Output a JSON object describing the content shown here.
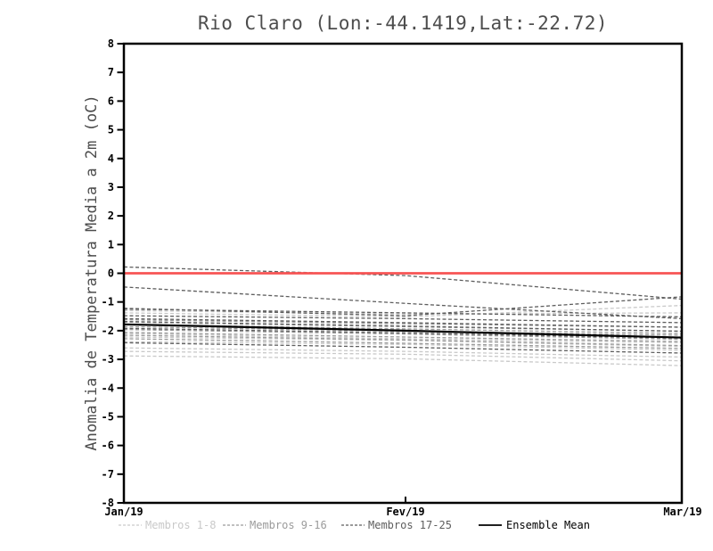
{
  "title": "Rio Claro (Lon:-44.1419,Lat:-22.72)",
  "chart_data": {
    "type": "line",
    "title": "Rio Claro (Lon:-44.1419,Lat:-22.72)",
    "xlabel": "",
    "ylabel": "Anomalia de Temperatura Media a 2m (oC)",
    "ylim": [
      -8,
      8
    ],
    "ytick_step": 1,
    "grid": false,
    "x_tick_labels": [
      "Jan/19",
      "Fev/19",
      "Mar/19"
    ],
    "y_tick_labels": [
      "8",
      "7",
      "6",
      "5",
      "4",
      "3",
      "2",
      "1",
      "0",
      "-1",
      "-2",
      "-3",
      "-4",
      "-5",
      "-6",
      "-7",
      "-8"
    ],
    "zero_line": {
      "value": 0,
      "color": "#f75454"
    },
    "legend_position": "bottom",
    "legend": [
      {
        "label": "Membros 1-8",
        "color": "#c9c9c9",
        "dashed": true
      },
      {
        "label": "Membros 9-16",
        "color": "#9b9b9b",
        "dashed": true
      },
      {
        "label": "Membros 17-25",
        "color": "#5e5e5e",
        "dashed": true
      },
      {
        "label": "Ensemble Mean",
        "color": "#000000",
        "dashed": false
      }
    ],
    "series": [
      {
        "name": "Membro 1",
        "group": 0,
        "values": [
          -1.3,
          -1.42,
          -1.38
        ]
      },
      {
        "name": "Membro 2",
        "group": 0,
        "values": [
          -2.1,
          -2.28,
          -2.42
        ]
      },
      {
        "name": "Membro 3",
        "group": 0,
        "values": [
          -2.22,
          -2.34,
          -2.55
        ]
      },
      {
        "name": "Membro 4",
        "group": 0,
        "values": [
          -2.38,
          -2.48,
          -2.68
        ]
      },
      {
        "name": "Membro 5",
        "group": 0,
        "values": [
          -2.6,
          -2.72,
          -2.92
        ]
      },
      {
        "name": "Membro 6",
        "group": 0,
        "values": [
          -2.72,
          -2.82,
          -3.05
        ]
      },
      {
        "name": "Membro 7",
        "group": 0,
        "values": [
          -2.88,
          -2.98,
          -3.22
        ]
      },
      {
        "name": "Membro 8",
        "group": 0,
        "values": [
          -1.38,
          -1.52,
          -1.12
        ]
      },
      {
        "name": "Membro 9",
        "group": 1,
        "values": [
          -1.62,
          -1.76,
          -1.88
        ]
      },
      {
        "name": "Membro 10",
        "group": 1,
        "values": [
          -1.7,
          -1.86,
          -2.02
        ]
      },
      {
        "name": "Membro 11",
        "group": 1,
        "values": [
          -1.78,
          -1.94,
          -2.1
        ]
      },
      {
        "name": "Membro 12",
        "group": 1,
        "values": [
          -1.86,
          -2.02,
          -2.16
        ]
      },
      {
        "name": "Membro 13",
        "group": 1,
        "values": [
          -1.96,
          -2.12,
          -2.3
        ]
      },
      {
        "name": "Membro 14",
        "group": 1,
        "values": [
          -2.06,
          -2.22,
          -2.38
        ]
      },
      {
        "name": "Membro 15",
        "group": 1,
        "values": [
          -2.16,
          -2.32,
          -2.52
        ]
      },
      {
        "name": "Membro 16",
        "group": 1,
        "values": [
          -2.28,
          -2.44,
          -2.62
        ]
      },
      {
        "name": "Membro 17",
        "group": 2,
        "values": [
          0.22,
          -0.08,
          -0.9
        ]
      },
      {
        "name": "Membro 18",
        "group": 2,
        "values": [
          -0.48,
          -1.05,
          -1.58
        ]
      },
      {
        "name": "Membro 19",
        "group": 2,
        "values": [
          -1.22,
          -1.48,
          -0.82
        ]
      },
      {
        "name": "Membro 20",
        "group": 2,
        "values": [
          -1.25,
          -1.38,
          -1.52
        ]
      },
      {
        "name": "Membro 21",
        "group": 2,
        "values": [
          -1.48,
          -1.58,
          -1.72
        ]
      },
      {
        "name": "Membro 22",
        "group": 2,
        "values": [
          -1.58,
          -1.72,
          -1.88
        ]
      },
      {
        "name": "Membro 23",
        "group": 2,
        "values": [
          -1.68,
          -1.84,
          -2.02
        ]
      },
      {
        "name": "Membro 24",
        "group": 2,
        "values": [
          -1.92,
          -2.08,
          -2.26
        ]
      },
      {
        "name": "Membro 25",
        "group": 2,
        "values": [
          -2.42,
          -2.58,
          -2.78
        ]
      },
      {
        "name": "Ensemble Mean",
        "group": 3,
        "values": [
          -1.78,
          -2.0,
          -2.24
        ]
      }
    ]
  },
  "colors": {
    "frame": "#000000",
    "zero_line": "#f75454",
    "title_text": "#4d4d4d",
    "tick_text": "#000000"
  }
}
